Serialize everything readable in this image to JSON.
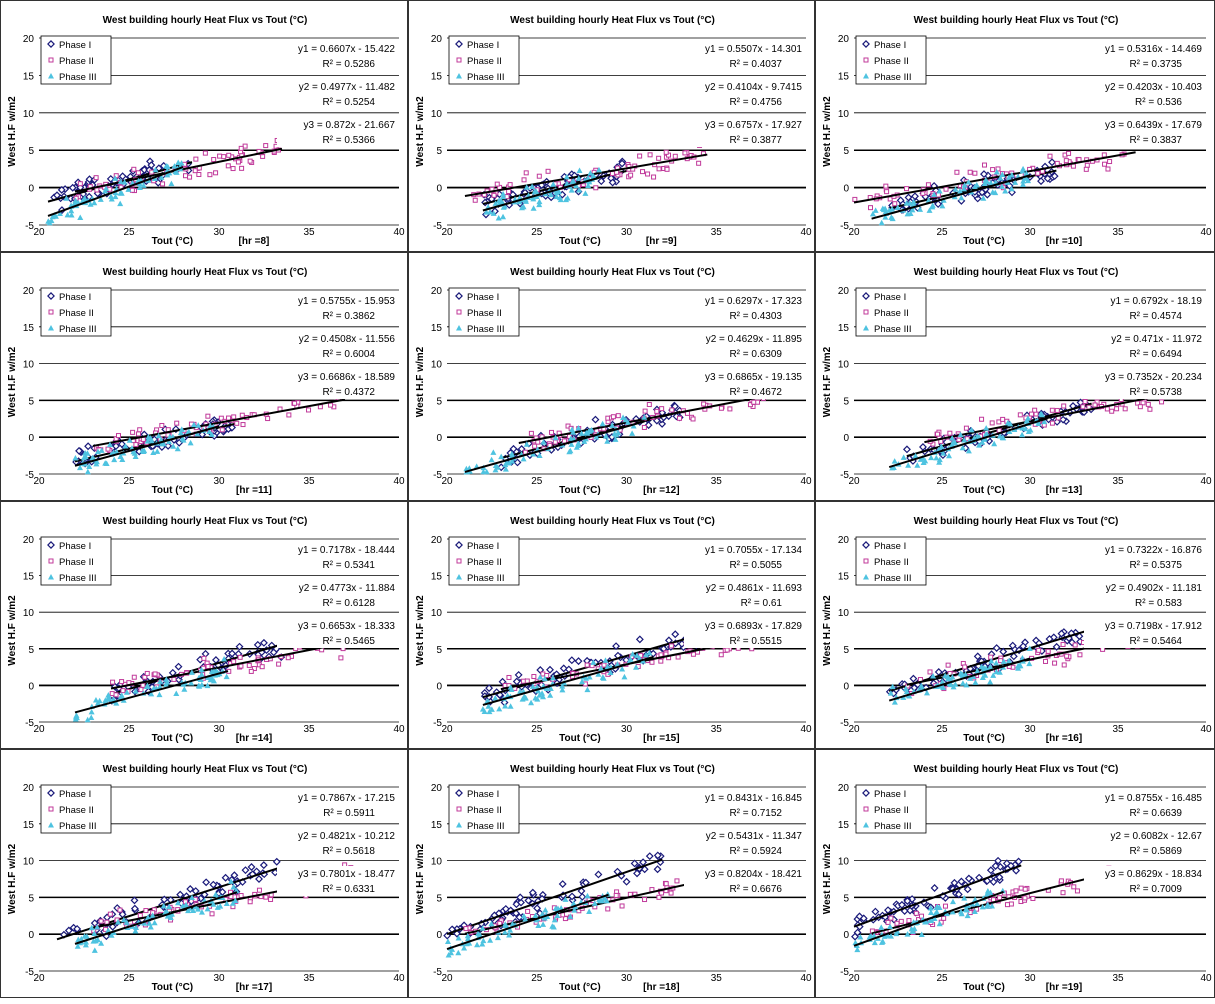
{
  "title": "West building hourly Heat Flux vs Tout (°C)",
  "ylabel": "West H.F w/m2",
  "xlabel_prefix": "Tout  (°C)",
  "colors": {
    "phase1": "#1a1a7a",
    "phase2": "#c0399a",
    "phase3": "#4ec3e0",
    "line": "#000000"
  },
  "chart_data": [
    {
      "type": "scatter",
      "hr": "[hr =8]",
      "title": "West building hourly Heat Flux vs Tout (°C)",
      "xlim": [
        20,
        40
      ],
      "ylim": [
        -5,
        20
      ],
      "xticks": [
        20,
        25,
        30,
        35,
        40
      ],
      "yticks": [
        -5,
        0,
        5,
        10,
        15,
        20
      ],
      "series": [
        {
          "name": "Phase I",
          "slope": 0.6607,
          "intercept": -15.422,
          "xrange": [
            20.5,
            28.5
          ],
          "yrange": [
            -1.5,
            5
          ],
          "equation": "y1 = 0.6607x - 15.422",
          "r2": "R² = 0.5286"
        },
        {
          "name": "Phase II",
          "slope": 0.4977,
          "intercept": -11.482,
          "xrange": [
            22,
            33.5
          ],
          "yrange": [
            -1.5,
            5.5
          ],
          "equation": "y2 = 0.4977x - 11.482",
          "r2": "R² = 0.5254"
        },
        {
          "name": "Phase III",
          "slope": 0.872,
          "intercept": -21.667,
          "xrange": [
            20.5,
            28
          ],
          "yrange": [
            -5,
            3.5
          ],
          "equation": "y3 = 0.872x - 21.667",
          "r2": "R² = 0.5366"
        }
      ]
    },
    {
      "type": "scatter",
      "hr": "[hr =9]",
      "title": "West building hourly Heat Flux vs Tout (°C)",
      "xlim": [
        20,
        40
      ],
      "ylim": [
        -5,
        20
      ],
      "xticks": [
        20,
        25,
        30,
        35,
        40
      ],
      "yticks": [
        -5,
        0,
        5,
        10,
        15,
        20
      ],
      "series": [
        {
          "name": "Phase I",
          "slope": 0.5507,
          "intercept": -14.301,
          "xrange": [
            22,
            30
          ],
          "yrange": [
            -2,
            5
          ],
          "equation": "y1 = 0.5507x - 14.301",
          "r2": "R² = 0.4037"
        },
        {
          "name": "Phase II",
          "slope": 0.4104,
          "intercept": -9.7415,
          "xrange": [
            21,
            34.5
          ],
          "yrange": [
            -2,
            5.5
          ],
          "equation": "y2 = 0.4104x - 9.7415",
          "r2": "R² = 0.4756"
        },
        {
          "name": "Phase III",
          "slope": 0.6757,
          "intercept": -17.927,
          "xrange": [
            22,
            28.5
          ],
          "yrange": [
            -5,
            2.5
          ],
          "equation": "y3 = 0.6757x - 17.927",
          "r2": "R² = 0.3877"
        }
      ]
    },
    {
      "type": "scatter",
      "hr": "[hr =10]",
      "title": "West building hourly Heat Flux vs Tout (°C)",
      "xlim": [
        20,
        40
      ],
      "ylim": [
        -5,
        20
      ],
      "xticks": [
        20,
        25,
        30,
        35,
        40
      ],
      "yticks": [
        -5,
        0,
        5,
        10,
        15,
        20
      ],
      "series": [
        {
          "name": "Phase I",
          "slope": 0.5316,
          "intercept": -14.469,
          "xrange": [
            22,
            31.5
          ],
          "yrange": [
            -2,
            5
          ],
          "equation": "y1 = 0.5316x - 14.469",
          "r2": "R² = 0.3735"
        },
        {
          "name": "Phase II",
          "slope": 0.4203,
          "intercept": -10.403,
          "xrange": [
            20,
            36
          ],
          "yrange": [
            -2.5,
            6
          ],
          "equation": "y2 = 0.4203x - 10.403",
          "r2": "R² = 0.536"
        },
        {
          "name": "Phase III",
          "slope": 0.6439,
          "intercept": -17.679,
          "xrange": [
            21,
            30
          ],
          "yrange": [
            -5,
            3
          ],
          "equation": "y3 = 0.6439x - 17.679",
          "r2": "R² = 0.3837"
        }
      ]
    },
    {
      "type": "scatter",
      "hr": "[hr =11]",
      "title": "West building hourly Heat Flux vs Tout (°C)",
      "xlim": [
        20,
        40
      ],
      "ylim": [
        -5,
        20
      ],
      "xticks": [
        20,
        25,
        30,
        35,
        40
      ],
      "yticks": [
        -5,
        0,
        5,
        10,
        15,
        20
      ],
      "series": [
        {
          "name": "Phase I",
          "slope": 0.5755,
          "intercept": -15.953,
          "xrange": [
            22,
            31
          ],
          "yrange": [
            -4,
            4.5
          ],
          "equation": "y1 = 0.5755x - 15.953",
          "r2": "R² = 0.3862"
        },
        {
          "name": "Phase II",
          "slope": 0.4508,
          "intercept": -11.556,
          "xrange": [
            23,
            37
          ],
          "yrange": [
            -2,
            6
          ],
          "equation": "y2 = 0.4508x - 11.556",
          "r2": "R² = 0.6004"
        },
        {
          "name": "Phase III",
          "slope": 0.6686,
          "intercept": -18.589,
          "xrange": [
            22,
            30
          ],
          "yrange": [
            -4.5,
            3
          ],
          "equation": "y3 = 0.6686x - 18.589",
          "r2": "R² = 0.4372"
        }
      ]
    },
    {
      "type": "scatter",
      "hr": "[hr =12]",
      "title": "West building hourly Heat Flux vs Tout (°C)",
      "xlim": [
        20,
        40
      ],
      "ylim": [
        -5,
        20
      ],
      "xticks": [
        20,
        25,
        30,
        35,
        40
      ],
      "yticks": [
        -5,
        0,
        5,
        10,
        15,
        20
      ],
      "series": [
        {
          "name": "Phase I",
          "slope": 0.6297,
          "intercept": -17.323,
          "xrange": [
            23,
            33
          ],
          "yrange": [
            -3,
            5.5
          ],
          "equation": "y1 = 0.6297x - 17.323",
          "r2": "R² = 0.4303"
        },
        {
          "name": "Phase II",
          "slope": 0.4629,
          "intercept": -11.895,
          "xrange": [
            24,
            38
          ],
          "yrange": [
            -1.5,
            7
          ],
          "equation": "y2 = 0.4629x - 11.895",
          "r2": "R² = 0.6309"
        },
        {
          "name": "Phase III",
          "slope": 0.6865,
          "intercept": -19.135,
          "xrange": [
            21,
            31
          ],
          "yrange": [
            -3.5,
            4
          ],
          "equation": "y3 = 0.6865x - 19.135",
          "r2": "R² = 0.4672"
        }
      ]
    },
    {
      "type": "scatter",
      "hr": "[hr =13]",
      "title": "West building hourly Heat Flux vs Tout (°C)",
      "xlim": [
        20,
        40
      ],
      "ylim": [
        -5,
        20
      ],
      "xticks": [
        20,
        25,
        30,
        35,
        40
      ],
      "yticks": [
        -5,
        0,
        5,
        10,
        15,
        20
      ],
      "series": [
        {
          "name": "Phase I",
          "slope": 0.6792,
          "intercept": -18.19,
          "xrange": [
            23,
            33.5
          ],
          "yrange": [
            -1.5,
            6
          ],
          "equation": "y1 = 0.6792x - 18.19",
          "r2": "R² = 0.4574"
        },
        {
          "name": "Phase II",
          "slope": 0.471,
          "intercept": -11.972,
          "xrange": [
            24,
            38.5
          ],
          "yrange": [
            -1,
            7.5
          ],
          "equation": "y2 = 0.471x - 11.972",
          "r2": "R² = 0.6494"
        },
        {
          "name": "Phase III",
          "slope": 0.7352,
          "intercept": -20.234,
          "xrange": [
            22,
            31
          ],
          "yrange": [
            -3,
            4
          ],
          "equation": "y3 = 0.7352x - 20.234",
          "r2": "R² = 0.5738"
        }
      ]
    },
    {
      "type": "scatter",
      "hr": "[hr =14]",
      "title": "West building hourly Heat Flux vs Tout (°C)",
      "xlim": [
        20,
        40
      ],
      "ylim": [
        -5,
        20
      ],
      "xticks": [
        20,
        25,
        30,
        35,
        40
      ],
      "yticks": [
        -5,
        0,
        5,
        10,
        15,
        20
      ],
      "series": [
        {
          "name": "Phase I",
          "slope": 0.7178,
          "intercept": -18.444,
          "xrange": [
            24,
            35
          ],
          "yrange": [
            -1,
            8
          ],
          "equation": "y1 = 0.7178x - 18.444",
          "r2": "R² = 0.5341"
        },
        {
          "name": "Phase II",
          "slope": 0.4773,
          "intercept": -11.884,
          "xrange": [
            24,
            39
          ],
          "yrange": [
            -0.5,
            8.5
          ],
          "equation": "y2 = 0.4773x - 11.884",
          "r2": "R² = 0.6128"
        },
        {
          "name": "Phase III",
          "slope": 0.6653,
          "intercept": -18.333,
          "xrange": [
            22,
            30.5
          ],
          "yrange": [
            -2,
            5
          ],
          "equation": "y3 = 0.6653x - 18.333",
          "r2": "R² = 0.5465"
        }
      ]
    },
    {
      "type": "scatter",
      "hr": "[hr =15]",
      "title": "West building hourly Heat Flux vs Tout (°C)",
      "xlim": [
        20,
        40
      ],
      "ylim": [
        -5,
        20
      ],
      "xticks": [
        20,
        25,
        30,
        35,
        40
      ],
      "yticks": [
        -5,
        0,
        5,
        10,
        15,
        20
      ],
      "series": [
        {
          "name": "Phase I",
          "slope": 0.7055,
          "intercept": -17.134,
          "xrange": [
            22,
            34
          ],
          "yrange": [
            -1,
            9
          ],
          "equation": "y1 = 0.7055x - 17.134",
          "r2": "R² = 0.5055"
        },
        {
          "name": "Phase II",
          "slope": 0.4861,
          "intercept": -11.693,
          "xrange": [
            23,
            39
          ],
          "yrange": [
            -1,
            9
          ],
          "equation": "y2 = 0.4861x - 11.693",
          "r2": "R² = 0.61"
        },
        {
          "name": "Phase III",
          "slope": 0.6893,
          "intercept": -17.829,
          "xrange": [
            22,
            31.5
          ],
          "yrange": [
            -2,
            6.5
          ],
          "equation": "y3 = 0.6893x - 17.829",
          "r2": "R² = 0.5515"
        }
      ]
    },
    {
      "type": "scatter",
      "hr": "[hr =16]",
      "title": "West building hourly Heat Flux vs Tout (°C)",
      "xlim": [
        20,
        40
      ],
      "ylim": [
        -5,
        20
      ],
      "xticks": [
        20,
        25,
        30,
        35,
        40
      ],
      "yticks": [
        -5,
        0,
        5,
        10,
        15,
        20
      ],
      "series": [
        {
          "name": "Phase I",
          "slope": 0.7322,
          "intercept": -16.876,
          "xrange": [
            22,
            34
          ],
          "yrange": [
            0,
            10
          ],
          "equation": "y1 = 0.7322x - 16.876",
          "r2": "R² = 0.5375"
        },
        {
          "name": "Phase II",
          "slope": 0.4902,
          "intercept": -11.181,
          "xrange": [
            23,
            39
          ],
          "yrange": [
            0,
            10
          ],
          "equation": "y2 = 0.4902x - 11.181",
          "r2": "R² = 0.583"
        },
        {
          "name": "Phase III",
          "slope": 0.7198,
          "intercept": -17.912,
          "xrange": [
            22,
            30
          ],
          "yrange": [
            -1,
            7
          ],
          "equation": "y3 = 0.7198x - 17.912",
          "r2": "R² = 0.5464"
        }
      ]
    },
    {
      "type": "scatter",
      "hr": "[hr =17]",
      "title": "West building hourly Heat Flux vs Tout (°C)",
      "xlim": [
        20,
        40
      ],
      "ylim": [
        -5,
        20
      ],
      "xticks": [
        20,
        25,
        30,
        35,
        40
      ],
      "yticks": [
        -5,
        0,
        5,
        10,
        15,
        20
      ],
      "series": [
        {
          "name": "Phase I",
          "slope": 0.7867,
          "intercept": -17.215,
          "xrange": [
            21,
            33.5
          ],
          "yrange": [
            1,
            10.5
          ],
          "equation": "y1 = 0.7867x - 17.215",
          "r2": "R² = 0.5911"
        },
        {
          "name": "Phase II",
          "slope": 0.4821,
          "intercept": -10.212,
          "xrange": [
            23,
            38.5
          ],
          "yrange": [
            0,
            10
          ],
          "equation": "y2 = 0.4821x - 10.212",
          "r2": "R² = 0.5618"
        },
        {
          "name": "Phase III",
          "slope": 0.7801,
          "intercept": -18.477,
          "xrange": [
            22,
            31
          ],
          "yrange": [
            -1.5,
            7
          ],
          "equation": "y3 = 0.7801x - 18.477",
          "r2": "R² = 0.6331"
        }
      ]
    },
    {
      "type": "scatter",
      "hr": "[hr =18]",
      "title": "West building hourly Heat Flux vs Tout (°C)",
      "xlim": [
        20,
        40
      ],
      "ylim": [
        -5,
        20
      ],
      "xticks": [
        20,
        25,
        30,
        35,
        40
      ],
      "yticks": [
        -5,
        0,
        5,
        10,
        15,
        20
      ],
      "series": [
        {
          "name": "Phase I",
          "slope": 0.8431,
          "intercept": -16.845,
          "xrange": [
            20,
            32
          ],
          "yrange": [
            0.5,
            10.5
          ],
          "equation": "y1 = 0.8431x - 16.845",
          "r2": "R² = 0.7152"
        },
        {
          "name": "Phase II",
          "slope": 0.5431,
          "intercept": -11.347,
          "xrange": [
            21,
            35
          ],
          "yrange": [
            -0.5,
            10
          ],
          "equation": "y2 = 0.5431x - 11.347",
          "r2": "R² = 0.5924"
        },
        {
          "name": "Phase III",
          "slope": 0.8204,
          "intercept": -18.421,
          "xrange": [
            20,
            29
          ],
          "yrange": [
            -1.5,
            6.5
          ],
          "equation": "y3 = 0.8204x - 18.421",
          "r2": "R² = 0.6676"
        }
      ]
    },
    {
      "type": "scatter",
      "hr": "[hr =19]",
      "title": "West building hourly Heat Flux vs Tout (°C)",
      "xlim": [
        20,
        40
      ],
      "ylim": [
        -5,
        20
      ],
      "xticks": [
        20,
        25,
        30,
        35,
        40
      ],
      "yticks": [
        -5,
        0,
        5,
        10,
        15,
        20
      ],
      "series": [
        {
          "name": "Phase I",
          "slope": 0.8755,
          "intercept": -16.485,
          "xrange": [
            20,
            29.5
          ],
          "yrange": [
            1,
            10
          ],
          "equation": "y1 = 0.8755x - 16.485",
          "r2": "R² = 0.6639"
        },
        {
          "name": "Phase II",
          "slope": 0.6082,
          "intercept": -12.67,
          "xrange": [
            21,
            35.5
          ],
          "yrange": [
            -0.5,
            10.5
          ],
          "equation": "y2 = 0.6082x - 12.67",
          "r2": "R² = 0.5869"
        },
        {
          "name": "Phase III",
          "slope": 0.8629,
          "intercept": -18.834,
          "xrange": [
            20,
            28.5
          ],
          "yrange": [
            -1.5,
            6
          ],
          "equation": "y3 = 0.8629x - 18.834",
          "r2": "R² = 0.7009"
        }
      ]
    }
  ]
}
